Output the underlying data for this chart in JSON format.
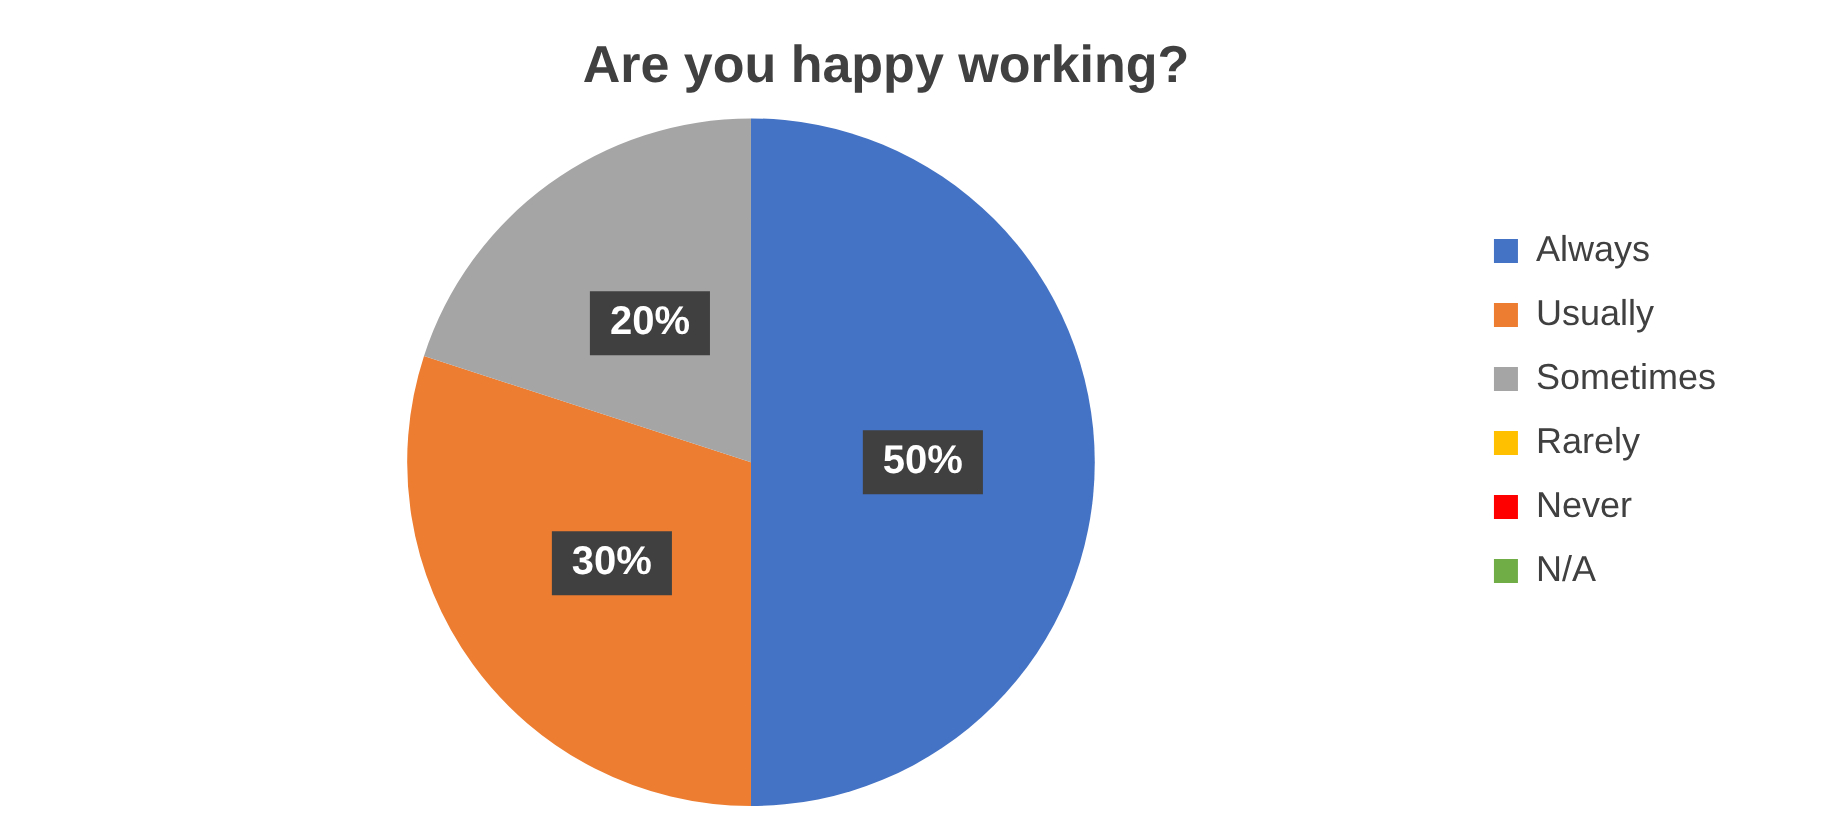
{
  "chart_data": {
    "type": "pie",
    "title": "Are you happy working?",
    "categories": [
      "Always",
      "Usually",
      "Sometimes",
      "Rarely",
      "Never",
      "N/A"
    ],
    "values": [
      50,
      30,
      20,
      0,
      0,
      0
    ],
    "colors": [
      "#4472c4",
      "#ed7d31",
      "#a5a5a5",
      "#ffc000",
      "#ff0000",
      "#70ad47"
    ],
    "value_labels": [
      "50%",
      "30%",
      "20%",
      null,
      null,
      null
    ],
    "legend": "right"
  }
}
